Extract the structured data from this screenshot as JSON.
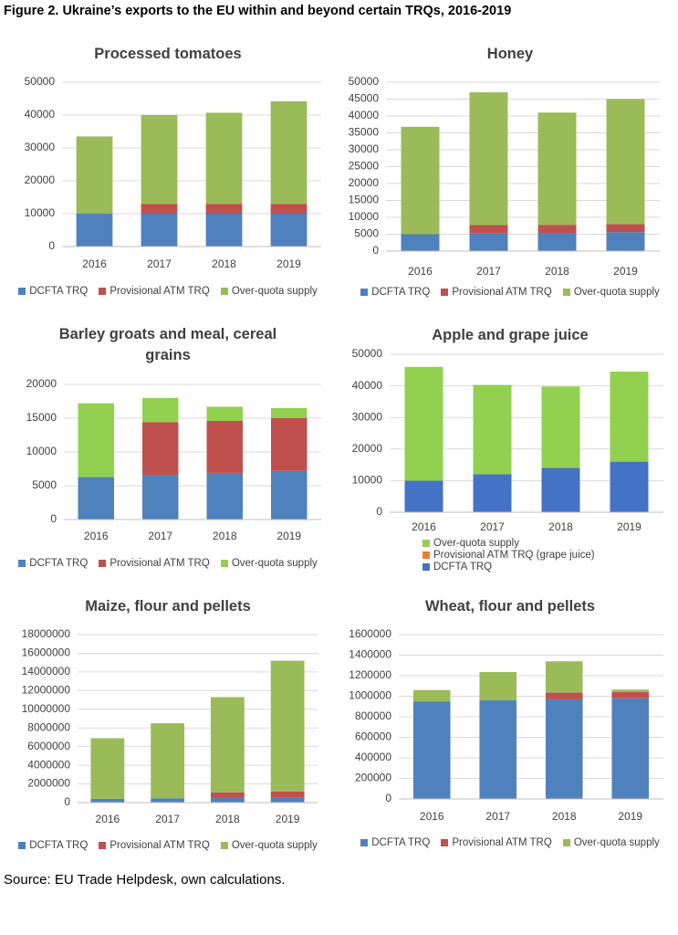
{
  "title": "Figure 2. Ukraine’s exports to the EU within and beyond certain TRQs, 2016-2019",
  "source": "Source: EU Trade Helpdesk, own calculations.",
  "chart_data": [
    {
      "type": "bar",
      "stacked": true,
      "title": "Processed tomatoes",
      "categories": [
        "2016",
        "2017",
        "2018",
        "2019"
      ],
      "series": [
        {
          "name": "DCFTA TRQ",
          "color": "#4f81bd",
          "values": [
            10000,
            10000,
            10000,
            10000
          ]
        },
        {
          "name": "Provisional ATM TRQ",
          "color": "#c0504d",
          "values": [
            0,
            3000,
            3000,
            3000
          ]
        },
        {
          "name": "Over-quota supply",
          "color": "#9bbb59",
          "values": [
            23500,
            27000,
            27700,
            31200
          ]
        }
      ],
      "ylim": [
        0,
        50000
      ],
      "yticks": [
        0,
        10000,
        20000,
        30000,
        40000,
        50000
      ],
      "grid": true,
      "legend": "bottom"
    },
    {
      "type": "bar",
      "stacked": true,
      "title": "Honey",
      "categories": [
        "2016",
        "2017",
        "2018",
        "2019"
      ],
      "series": [
        {
          "name": "DCFTA TRQ",
          "color": "#4f81bd",
          "values": [
            5000,
            5200,
            5400,
            5600
          ]
        },
        {
          "name": "Provisional ATM TRQ",
          "color": "#c0504d",
          "values": [
            0,
            2500,
            2400,
            2400
          ]
        },
        {
          "name": "Over-quota supply",
          "color": "#9bbb59",
          "values": [
            31800,
            39300,
            33200,
            37000
          ]
        }
      ],
      "ylim": [
        0,
        50000
      ],
      "yticks": [
        0,
        5000,
        10000,
        15000,
        20000,
        25000,
        30000,
        35000,
        40000,
        45000,
        50000
      ],
      "grid": true,
      "legend": "bottom"
    },
    {
      "type": "bar",
      "stacked": true,
      "title": "Barley groats and meal, cereal grains",
      "categories": [
        "2016",
        "2017",
        "2018",
        "2019"
      ],
      "series": [
        {
          "name": "DCFTA TRQ",
          "color": "#4f81bd",
          "values": [
            6300,
            6600,
            6900,
            7200
          ]
        },
        {
          "name": "Provisional ATM TRQ",
          "color": "#c0504d",
          "values": [
            0,
            7800,
            7700,
            7800
          ]
        },
        {
          "name": "Over-quota supply",
          "color": "#92d050",
          "values": [
            10900,
            3600,
            2100,
            1500
          ]
        }
      ],
      "ylim": [
        0,
        20000
      ],
      "yticks": [
        0,
        5000,
        10000,
        15000,
        20000
      ],
      "grid": true,
      "legend": "bottom"
    },
    {
      "type": "bar",
      "stacked": true,
      "title": "Apple and grape juice",
      "categories": [
        "2016",
        "2017",
        "2018",
        "2019"
      ],
      "series": [
        {
          "name": "DCFTA TRQ",
          "color": "#4472c4",
          "values": [
            10000,
            12000,
            14000,
            16000
          ]
        },
        {
          "name": "Provisional ATM TRQ (grape juice)",
          "color": "#ed7d31",
          "values": [
            0,
            0,
            0,
            0
          ]
        },
        {
          "name": "Over-quota supply",
          "color": "#92d050",
          "values": [
            36000,
            28300,
            25800,
            28500
          ]
        }
      ],
      "ylim": [
        0,
        50000
      ],
      "yticks": [
        0,
        10000,
        20000,
        30000,
        40000,
        50000
      ],
      "grid": true,
      "legend": "bottom"
    },
    {
      "type": "bar",
      "stacked": true,
      "title": "Maize, flour and pellets",
      "categories": [
        "2016",
        "2017",
        "2018",
        "2019"
      ],
      "series": [
        {
          "name": "DCFTA TRQ",
          "color": "#4f81bd",
          "values": [
            400000,
            450000,
            500000,
            550000
          ]
        },
        {
          "name": "Provisional ATM TRQ",
          "color": "#c0504d",
          "values": [
            0,
            0,
            600000,
            650000
          ]
        },
        {
          "name": "Over-quota supply",
          "color": "#9bbb59",
          "values": [
            6500000,
            8050000,
            10200000,
            14000000
          ]
        }
      ],
      "ylim": [
        0,
        18000000
      ],
      "yticks": [
        0,
        2000000,
        4000000,
        6000000,
        8000000,
        10000000,
        12000000,
        14000000,
        16000000,
        18000000
      ],
      "grid": true,
      "legend": "bottom"
    },
    {
      "type": "bar",
      "stacked": true,
      "title": "Wheat, flour and pellets",
      "categories": [
        "2016",
        "2017",
        "2018",
        "2019"
      ],
      "series": [
        {
          "name": "DCFTA TRQ",
          "color": "#4f81bd",
          "values": [
            950000,
            960000,
            970000,
            980000
          ]
        },
        {
          "name": "Provisional ATM TRQ",
          "color": "#c0504d",
          "values": [
            0,
            0,
            65000,
            60000
          ]
        },
        {
          "name": "Over-quota supply",
          "color": "#9bbb59",
          "values": [
            110000,
            275000,
            305000,
            25000
          ]
        }
      ],
      "ylim": [
        0,
        1600000
      ],
      "yticks": [
        0,
        200000,
        400000,
        600000,
        800000,
        1000000,
        1200000,
        1400000,
        1600000
      ],
      "grid": true,
      "legend": "bottom"
    }
  ]
}
